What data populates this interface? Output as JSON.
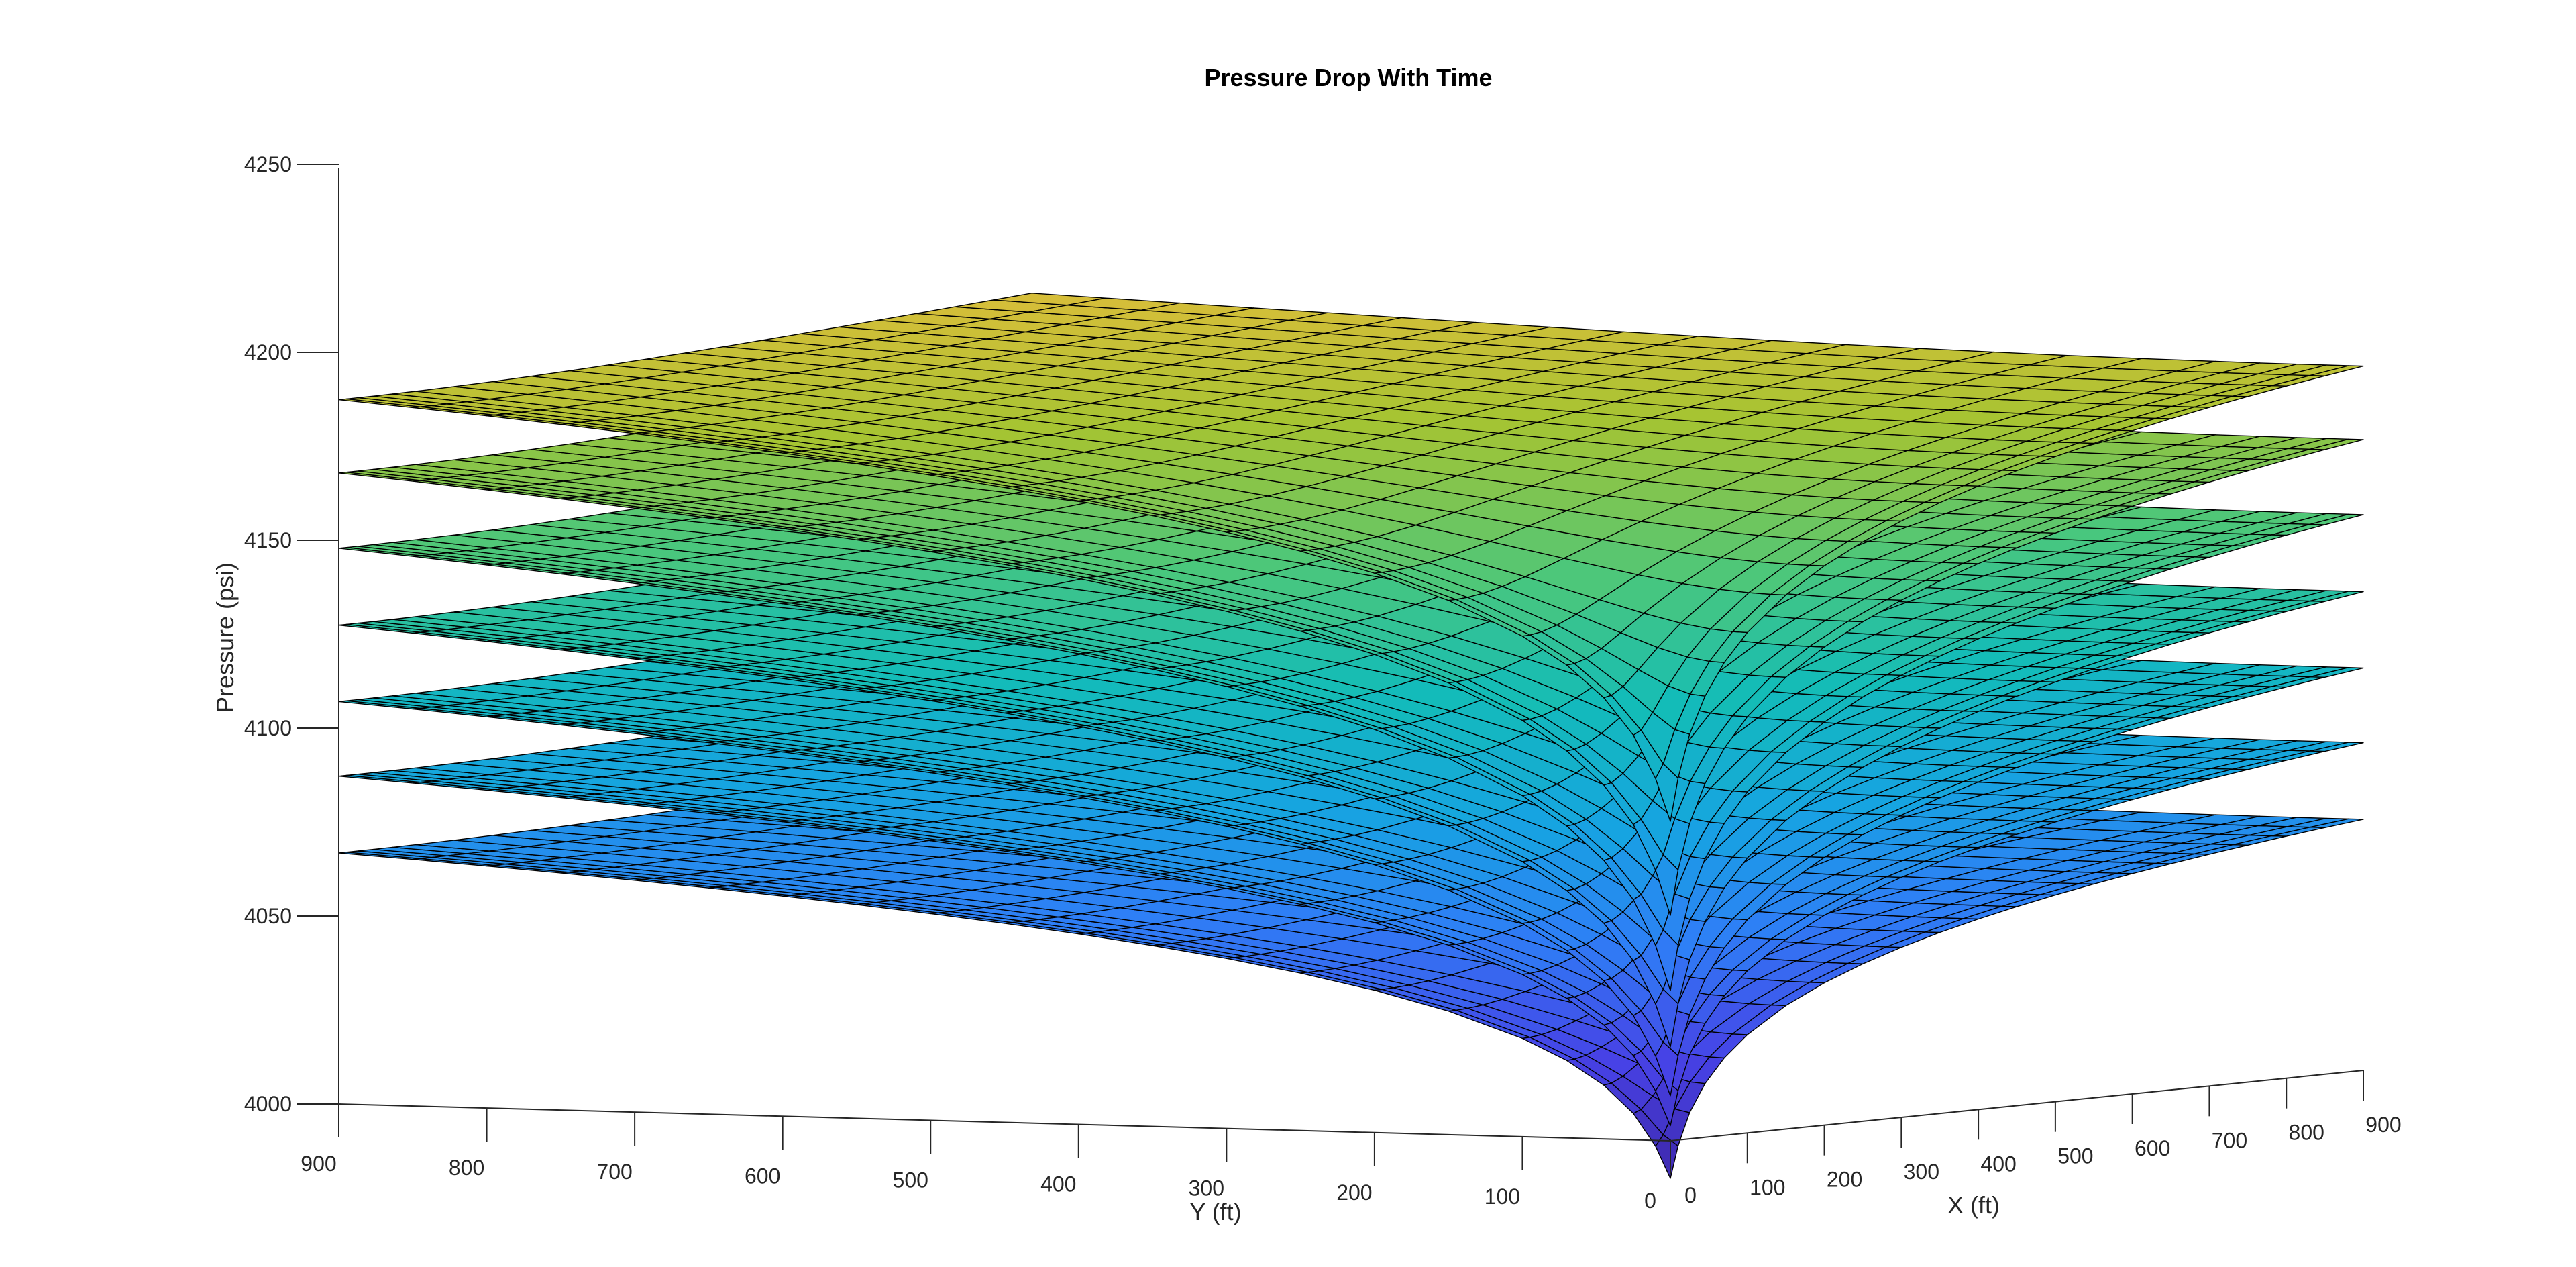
{
  "chart_data": {
    "type": "surface",
    "title": "Pressure Drop With Time",
    "xlabel": "X (ft)",
    "ylabel": "Y (ft)",
    "zlabel": "Pressure (psi)",
    "x_ticks": [
      "0",
      "100",
      "200",
      "300",
      "400",
      "500",
      "600",
      "700",
      "800",
      "900"
    ],
    "y_ticks": [
      "900",
      "800",
      "700",
      "600",
      "500",
      "400",
      "300",
      "200",
      "100",
      "0"
    ],
    "z_ticks": [
      "4000",
      "4050",
      "4100",
      "4150",
      "4200",
      "4250"
    ],
    "xlim": [
      0,
      900
    ],
    "ylim": [
      0,
      900
    ],
    "zlim": [
      4000,
      4250
    ],
    "grid": false,
    "colormap": "parula",
    "well_location": {
      "x": 0,
      "y": 0
    },
    "layers": [
      {
        "far_corner_pressure": 4197,
        "min_pressure": 4085
      },
      {
        "far_corner_pressure": 4178,
        "min_pressure": 4060
      },
      {
        "far_corner_pressure": 4158,
        "min_pressure": 4040
      },
      {
        "far_corner_pressure": 4137,
        "min_pressure": 4025
      },
      {
        "far_corner_pressure": 4116,
        "min_pressure": 4012
      },
      {
        "far_corner_pressure": 4095,
        "min_pressure": 4004
      },
      {
        "far_corner_pressure": 4074,
        "min_pressure": 3990
      }
    ]
  }
}
